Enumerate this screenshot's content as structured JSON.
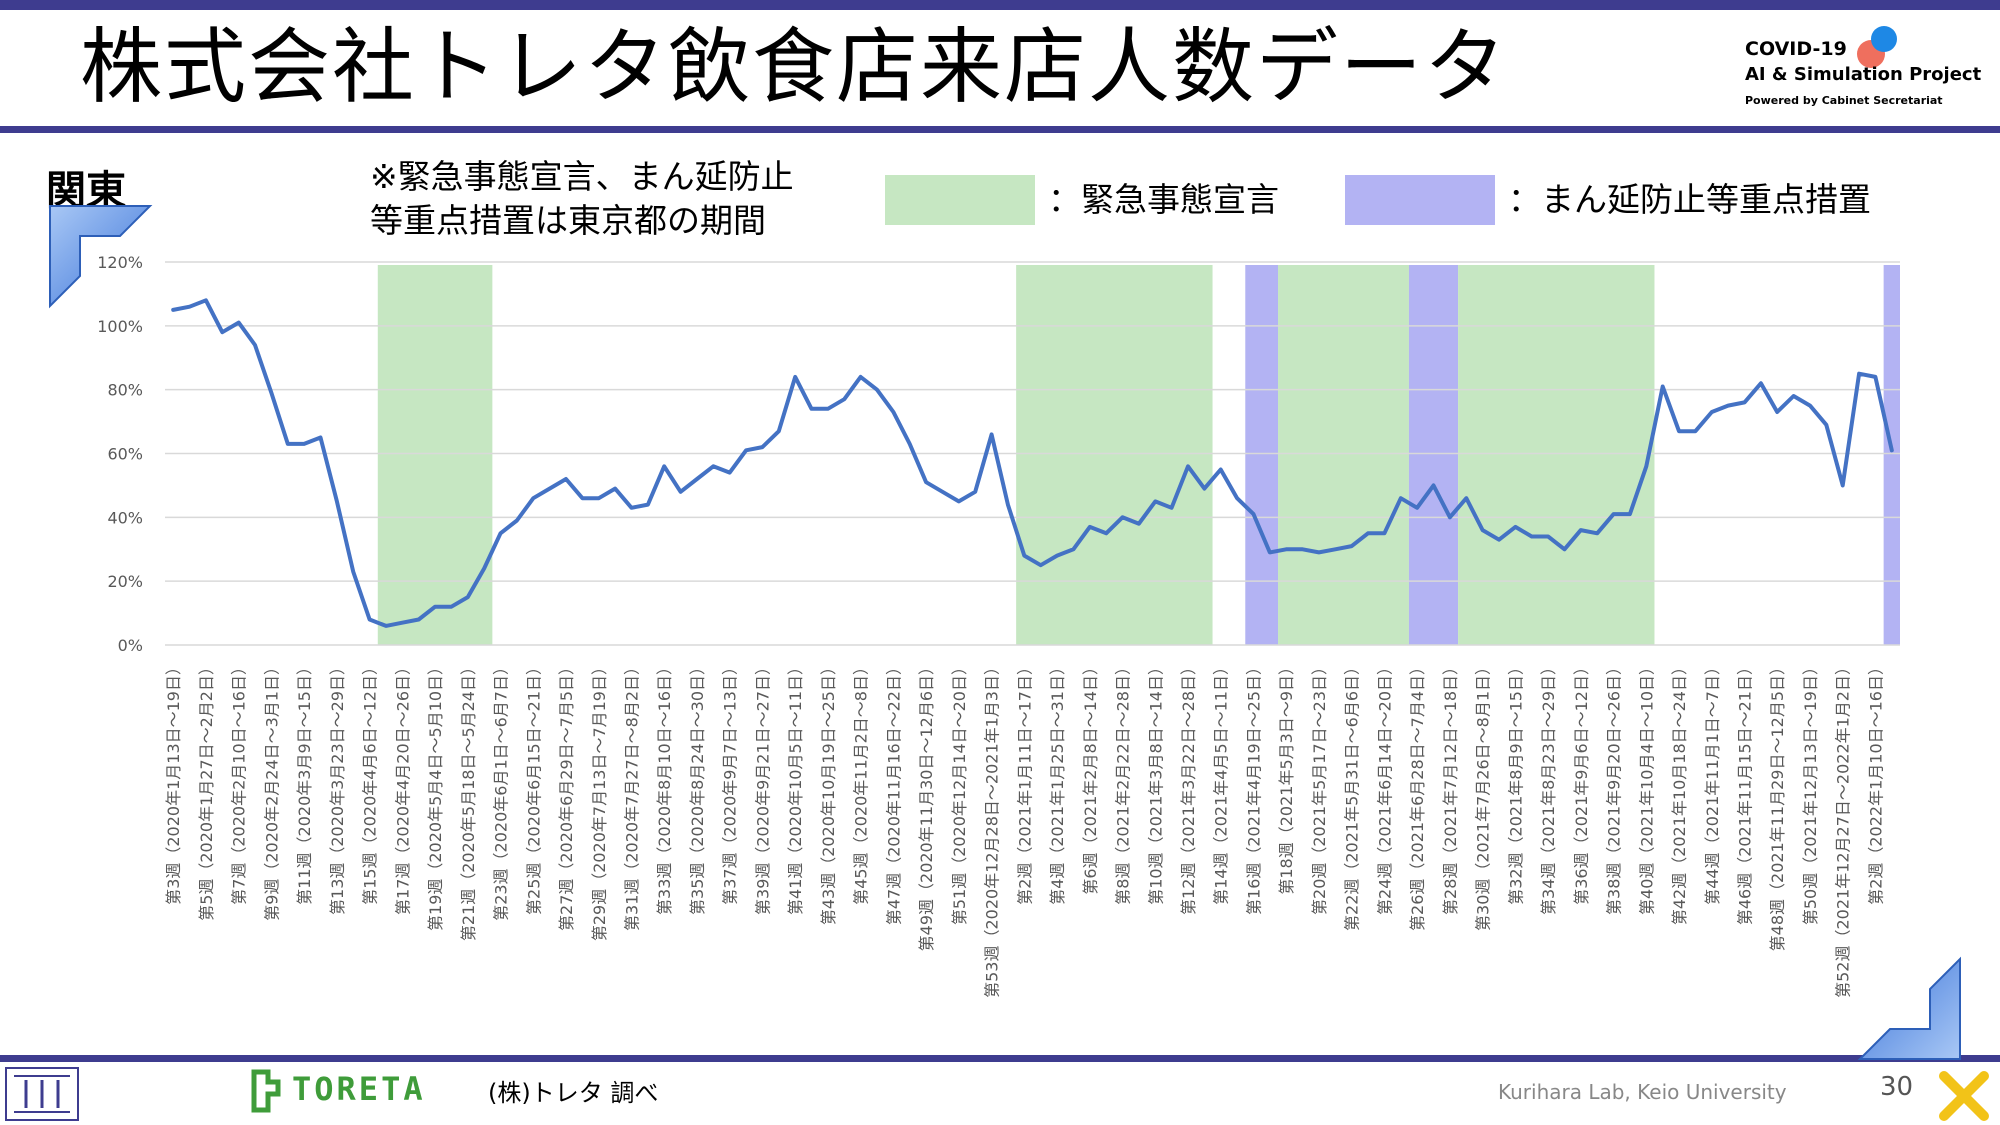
{
  "slide": {
    "title": "株式会社トレタ飲食店来店人数データ",
    "region": "関東",
    "note_line1": "※緊急事態宣言、まん延防止",
    "note_line2": "等重点措置は東京都の期間",
    "legend_emergency": "：緊急事態宣言",
    "legend_priority": "：まん延防止等重点措置",
    "source": "(株)トレタ 調べ",
    "lab": "Kurihara Lab, Keio University",
    "page_number": "30",
    "toreta_logo_text": "TORETA",
    "covid_logo": {
      "line1": "COVID-19",
      "line2": "AI & Simulation Project",
      "line3": "Powered by Cabinet Secretariat"
    },
    "colors": {
      "bar_navy": "#3e3c8f",
      "line": "#4472c4",
      "emergency": "#c6e7c2",
      "priority": "#b3b3f3",
      "grid": "#d9d9d9"
    }
  },
  "chart_data": {
    "type": "line",
    "ylim": [
      0,
      120
    ],
    "yticks": [
      "0%",
      "20%",
      "40%",
      "60%",
      "80%",
      "100%",
      "120%"
    ],
    "ytick_values": [
      0,
      20,
      40,
      60,
      80,
      100,
      120
    ],
    "grid": true,
    "series": [
      {
        "values": [
          105,
          106,
          108,
          98,
          101,
          94,
          79,
          63,
          63,
          65,
          45,
          23,
          8,
          6,
          7,
          8,
          12,
          12,
          15,
          24,
          35,
          39,
          46,
          49,
          52,
          46,
          46,
          49,
          43,
          44,
          56,
          48,
          52,
          56,
          54,
          61,
          62,
          67,
          84,
          74,
          74,
          77,
          84,
          80,
          73,
          63,
          51,
          48,
          45,
          48,
          66,
          44,
          28,
          25,
          28,
          30,
          37,
          35,
          40,
          38,
          45,
          43,
          56,
          49,
          55,
          46,
          41,
          29,
          30,
          30,
          29,
          30,
          31,
          35,
          35,
          46,
          43,
          50,
          40,
          46,
          36,
          33,
          37,
          34,
          34,
          30,
          36,
          35,
          41,
          41,
          56,
          81,
          67,
          67,
          73,
          75,
          76,
          82,
          73,
          78,
          75,
          69,
          50,
          85,
          84,
          61
        ]
      }
    ],
    "shaded_periods": [
      {
        "type": "emergency",
        "start_week": 13,
        "end_week": 19
      },
      {
        "type": "emergency",
        "start_week": 52,
        "end_week": 63
      },
      {
        "type": "priority",
        "start_week": 66,
        "end_week": 67
      },
      {
        "type": "emergency",
        "start_week": 68,
        "end_week": 75
      },
      {
        "type": "priority",
        "start_week": 76,
        "end_week": 78
      },
      {
        "type": "emergency",
        "start_week": 79,
        "end_week": 90
      },
      {
        "type": "priority",
        "start_week": 105,
        "end_week": 105
      }
    ],
    "x_labels": [
      "第3週（2020年1月13日～19日）",
      "第5週（2020年1月27日～2月2日）",
      "第7週（2020年2月10日～16日）",
      "第9週（2020年2月24日～3月1日）",
      "第11週（2020年3月9日～15日）",
      "第13週（2020年3月23日～29日）",
      "第15週（2020年4月6日～12日）",
      "第17週（2020年4月20日～26日）",
      "第19週（2020年5月4日～5月10日）",
      "第21週（2020年5月18日～5月24日）",
      "第23週（2020年6月1日～6月7日）",
      "第25週（2020年6月15日～21日）",
      "第27週（2020年6月29日～7月5日）",
      "第29週（2020年7月13日～7月19日）",
      "第31週（2020年7月27日～8月2日）",
      "第33週（2020年8月10日～16日）",
      "第35週（2020年8月24日～30日）",
      "第37週（2020年9月7日～13日）",
      "第39週（2020年9月21日～27日）",
      "第41週（2020年10月5日～11日）",
      "第43週（2020年10月19日～25日）",
      "第45週（2020年11月2日～8日）",
      "第47週（2020年11月16日～22日）",
      "第49週（2020年11月30日～12月6日）",
      "第51週（2020年12月14日～20日）",
      "第53週（2020年12月28日～2021年1月3日）",
      "第2週（2021年1月11日～17日）",
      "第4週（2021年1月25日～31日）",
      "第6週（2021年2月8日～14日）",
      "第8週（2021年2月22日～28日）",
      "第10週（2021年3月8日～14日）",
      "第12週（2021年3月22日～28日）",
      "第14週（2021年4月5日～11日）",
      "第16週（2021年4月19日～25日）",
      "第18週（2021年5月3日～9日）",
      "第20週（2021年5月17日～23日）",
      "第22週（2021年5月31日～6月6日）",
      "第24週（2021年6月14日～20日）",
      "第26週（2021年6月28日～7月4日）",
      "第28週（2021年7月12日～18日）",
      "第30週（2021年7月26日～8月1日）",
      "第32週（2021年8月9日～15日）",
      "第34週（2021年8月23日～29日）",
      "第36週（2021年9月6日～12日）",
      "第38週（2021年9月20日～26日）",
      "第40週（2021年10月4日～10日）",
      "第42週（2021年10月18日～24日）",
      "第44週（2021年11月1日～7日）",
      "第46週（2021年11月15日～21日）",
      "第48週（2021年11月29日～12月5日）",
      "第50週（2021年12月13日～19日）",
      "第52週（2021年12月27日～2022年1月2日）",
      "第2週（2022年1月10日～16日）"
    ]
  }
}
